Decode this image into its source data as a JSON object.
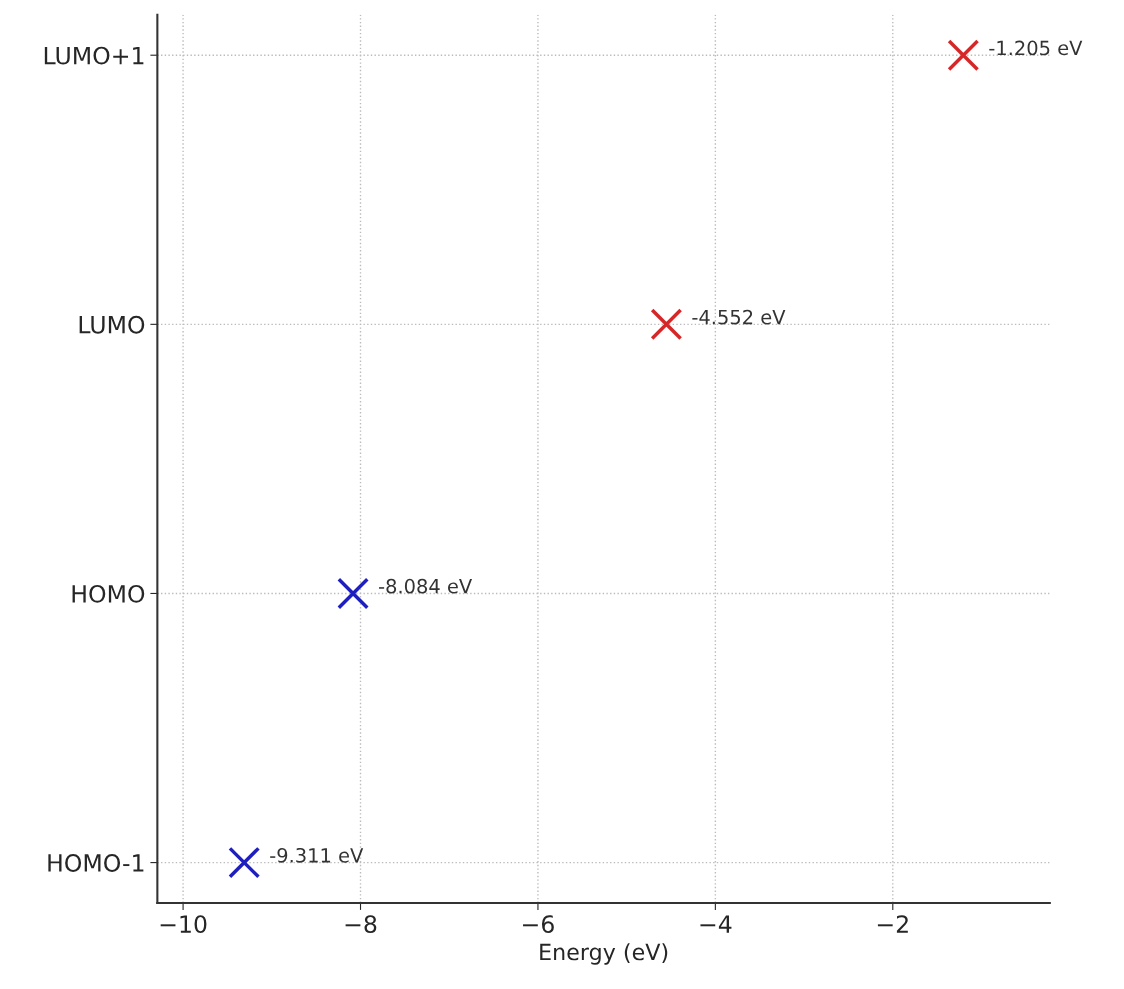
{
  "chart_data": {
    "type": "scatter",
    "orientation": "horizontal",
    "xlabel": "Energy (eV)",
    "categories": [
      "LUMO+1",
      "LUMO",
      "HOMO",
      "HOMO-1"
    ],
    "series": [
      {
        "color": "#d62728",
        "values": [
          -1.205,
          -4.552,
          null,
          null
        ],
        "value_labels": [
          "-1.205 eV",
          "-4.552 eV",
          null,
          null
        ]
      },
      {
        "color": "#1f1fbf",
        "values": [
          null,
          null,
          -8.084,
          -9.311
        ],
        "value_labels": [
          null,
          null,
          "-8.084 eV",
          "-9.311 eV"
        ]
      }
    ],
    "xlim": [
      -10.29,
      -0.23
    ],
    "xticks": [
      {
        "value": -10,
        "label": "−10"
      },
      {
        "value": -8,
        "label": "−8"
      },
      {
        "value": -6,
        "label": "−6"
      },
      {
        "value": -4,
        "label": "−4"
      },
      {
        "value": -2,
        "label": "−2"
      }
    ],
    "grid": true,
    "marker": "cross",
    "legend": false
  }
}
